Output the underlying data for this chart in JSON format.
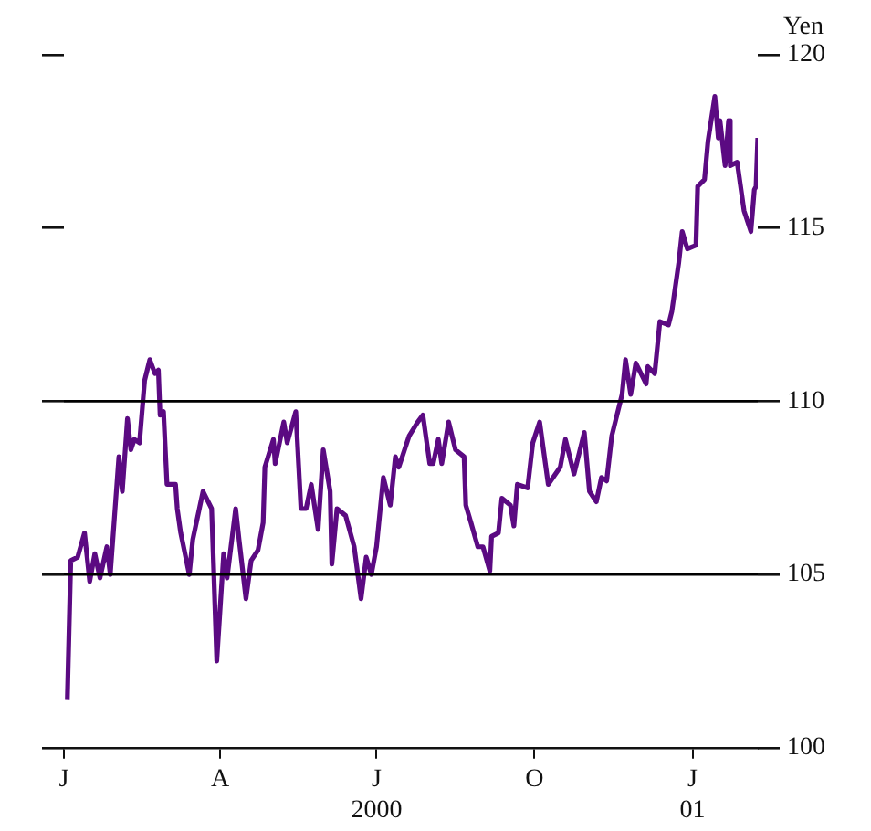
{
  "chart_data": {
    "type": "line",
    "ylabel": "Yen",
    "x": [
      "2000-01-03",
      "2000-01-05",
      "2000-01-09",
      "2000-01-13",
      "2000-01-16",
      "2000-01-19",
      "2000-01-22",
      "2000-01-26",
      "2000-01-28",
      "2000-02-02",
      "2000-02-04",
      "2000-02-07",
      "2000-02-09",
      "2000-02-11",
      "2000-02-14",
      "2000-02-17",
      "2000-02-20",
      "2000-02-23",
      "2000-02-25",
      "2000-02-26",
      "2000-02-28",
      "2000-03-01",
      "2000-03-06",
      "2000-03-07",
      "2000-03-09",
      "2000-03-14",
      "2000-03-16",
      "2000-03-22",
      "2000-03-27",
      "2000-03-30",
      "2000-04-03",
      "2000-04-05",
      "2000-04-10",
      "2000-04-12",
      "2000-04-16",
      "2000-04-19",
      "2000-04-23",
      "2000-04-26",
      "2000-04-27",
      "2000-05-02",
      "2000-05-03",
      "2000-05-08",
      "2000-05-10",
      "2000-05-15",
      "2000-05-18",
      "2000-05-21",
      "2000-05-24",
      "2000-05-28",
      "2000-05-31",
      "2000-06-04",
      "2000-06-05",
      "2000-06-08",
      "2000-06-13",
      "2000-06-18",
      "2000-06-22",
      "2000-06-25",
      "2000-06-28",
      "2000-07-01",
      "2000-07-05",
      "2000-07-09",
      "2000-07-12",
      "2000-07-14",
      "2000-07-20",
      "2000-07-25",
      "2000-07-28",
      "2000-08-01",
      "2000-08-03",
      "2000-08-06",
      "2000-08-08",
      "2000-08-12",
      "2000-08-16",
      "2000-08-21",
      "2000-08-22",
      "2000-08-25",
      "2000-08-29",
      "2000-09-01",
      "2000-09-05",
      "2000-09-06",
      "2000-09-10",
      "2000-09-12",
      "2000-09-17",
      "2000-09-19",
      "2000-09-21",
      "2000-09-27",
      "2000-09-30",
      "2000-10-04",
      "2000-10-09",
      "2000-10-16",
      "2000-10-19",
      "2000-10-24",
      "2000-10-30",
      "2000-11-02",
      "2000-11-06",
      "2000-11-09",
      "2000-11-12",
      "2000-11-15",
      "2000-11-21",
      "2000-11-23",
      "2000-11-26",
      "2000-11-29",
      "2000-12-05",
      "2000-12-06",
      "2000-12-10",
      "2000-12-13",
      "2000-12-18",
      "2000-12-20",
      "2000-12-24",
      "2000-12-26",
      "2000-12-29",
      "2001-01-03",
      "2001-01-04",
      "2001-01-08",
      "2001-01-10",
      "2001-01-14",
      "2001-01-16",
      "2001-01-17",
      "2001-01-20",
      "2001-01-22",
      "2001-01-23",
      "2001-01-27",
      "2001-01-31",
      "2001-02-04",
      "2001-02-06",
      "2001-02-07",
      "2001-02-08"
    ],
    "series": [
      {
        "color": "#5b0a82",
        "values": [
          101.4,
          105.4,
          105.5,
          106.2,
          104.8,
          105.6,
          104.9,
          105.8,
          105.0,
          108.4,
          107.4,
          109.5,
          108.6,
          108.9,
          108.8,
          110.6,
          111.2,
          110.8,
          110.9,
          109.6,
          109.7,
          107.6,
          107.6,
          106.9,
          106.2,
          105.0,
          106.0,
          107.4,
          106.9,
          102.5,
          105.6,
          104.9,
          106.9,
          106.0,
          104.3,
          105.4,
          105.7,
          106.5,
          108.1,
          108.9,
          108.2,
          109.4,
          108.8,
          109.7,
          106.9,
          106.9,
          107.6,
          106.3,
          108.6,
          107.4,
          105.3,
          106.9,
          106.7,
          105.8,
          104.3,
          105.5,
          105.0,
          105.8,
          107.8,
          107.0,
          108.4,
          108.1,
          109.0,
          109.4,
          109.6,
          108.2,
          108.2,
          108.9,
          108.2,
          109.4,
          108.6,
          108.4,
          107.0,
          106.5,
          105.8,
          105.8,
          105.1,
          106.1,
          106.2,
          107.2,
          107.0,
          106.4,
          107.6,
          107.5,
          108.8,
          109.4,
          107.6,
          108.1,
          108.9,
          107.9,
          109.1,
          107.4,
          107.1,
          107.8,
          107.7,
          109.0,
          110.2,
          111.2,
          110.2,
          111.1,
          110.5,
          111.0,
          110.8,
          112.3,
          112.2,
          112.6,
          114.0,
          114.9,
          114.4,
          114.5,
          116.2,
          116.4,
          117.5,
          118.8,
          117.6,
          118.1,
          116.8,
          118.1,
          116.8,
          116.9,
          115.5,
          114.9,
          116.1,
          116.2,
          117.6
        ]
      }
    ],
    "xlim": [
      "2000-01-01",
      "2001-02-08"
    ],
    "xticks": [
      {
        "value": "2000-01-01",
        "label": "J"
      },
      {
        "value": "2000-04-01",
        "label": "A"
      },
      {
        "value": "2000-07-01",
        "label": "J\n2000"
      },
      {
        "value": "2000-10-01",
        "label": "O"
      },
      {
        "value": "2001-01-01",
        "label": "J\n01"
      }
    ],
    "ylim": [
      100,
      120
    ],
    "yticks": [
      100,
      105,
      110,
      115,
      120
    ],
    "ref_lines": [
      {
        "axis": "y",
        "value": 105,
        "color": "#000000"
      },
      {
        "axis": "y",
        "value": 110,
        "color": "#000000"
      }
    ],
    "grid": false,
    "legend": false,
    "marker": "none",
    "line_style": "solid"
  }
}
